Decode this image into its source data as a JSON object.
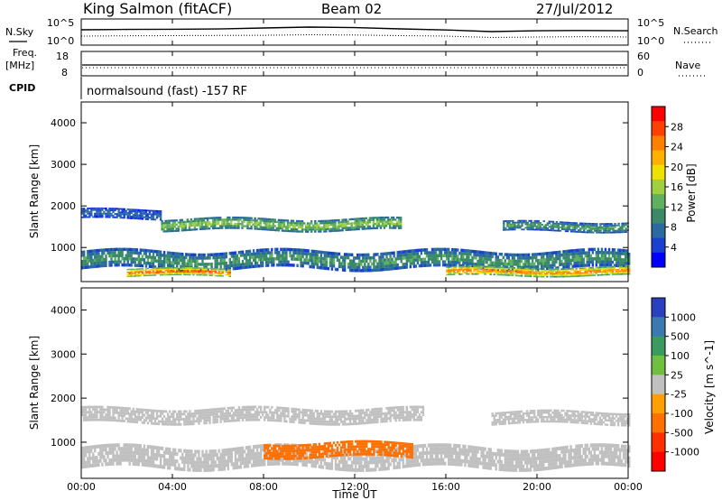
{
  "header": {
    "station": "King Salmon (fitACF)",
    "beam": "Beam 02",
    "date": "27/Jul/2012"
  },
  "panels": {
    "noise_left_label": "N.Sky",
    "noise_left_ticks": [
      "10^5",
      "10^0"
    ],
    "noise_right_label": "N.Search",
    "noise_right_ticks": [
      "10^5",
      "10^0"
    ],
    "freq_label_line1": "Freq.",
    "freq_label_line2": "[MHz]",
    "freq_ticks": [
      "18",
      "8"
    ],
    "nave_label": "Nave",
    "nave_ticks": [
      "60",
      "0"
    ],
    "cpid_label": "CPID",
    "cpid_text": "normalsound (fast) -157 RF"
  },
  "axes": {
    "ylabel": "Slant Range [km]",
    "yticks": [
      "4000",
      "3000",
      "2000",
      "1000"
    ],
    "xlabel": "Time UT",
    "xticks": [
      "00:00",
      "04:00",
      "08:00",
      "12:00",
      "16:00",
      "20:00",
      "00:00"
    ]
  },
  "colorbars": {
    "power": {
      "label": "Power [dB]",
      "ticks": [
        "28",
        "24",
        "20",
        "16",
        "12",
        "8",
        "4"
      ],
      "colors": [
        "#ff0000",
        "#ff4000",
        "#ff8000",
        "#ffb000",
        "#f0e000",
        "#a0d040",
        "#60b060",
        "#3a8a6a",
        "#2a6aa0",
        "#1a40d0",
        "#0000ff"
      ]
    },
    "velocity": {
      "label": "Velocity [m s^-1]",
      "ticks": [
        "1000",
        "500",
        "100",
        "25",
        "-25",
        "-100",
        "-500",
        "-1000"
      ],
      "colors": [
        "#2a40c0",
        "#3a7ab0",
        "#3a9a60",
        "#70c040",
        "#c0c0c0",
        "#ffa000",
        "#ff7000",
        "#ff3000",
        "#ff0000"
      ]
    }
  },
  "chart_data": [
    {
      "type": "line",
      "title": "N.Sky / N.Search",
      "x": [
        "00:00",
        "02:00",
        "04:00",
        "06:00",
        "08:00",
        "10:00",
        "12:00",
        "14:00",
        "16:00",
        "18:00",
        "20:00",
        "22:00",
        "24:00"
      ],
      "series": [
        {
          "name": "N.Sky",
          "values": [
            1000,
            1200,
            1300,
            1500,
            2500,
            4000,
            3000,
            1600,
            900,
            400,
            600,
            700,
            600
          ]
        },
        {
          "name": "N.Search",
          "values": [
            40,
            45,
            50,
            55,
            60,
            80,
            70,
            50,
            40,
            20,
            25,
            30,
            25
          ]
        }
      ]
    },
    {
      "type": "line",
      "title": "Freq. / Nave",
      "x": [
        "00:00",
        "04:00",
        "08:00",
        "12:00",
        "16:00",
        "20:00",
        "24:00"
      ],
      "series": [
        {
          "name": "Freq. [MHz]",
          "values": [
            10.5,
            10.5,
            10.5,
            10.5,
            10.5,
            10.5,
            10.5
          ]
        },
        {
          "name": "Nave",
          "values": [
            8,
            8,
            8,
            8,
            8,
            8,
            8
          ]
        }
      ]
    },
    {
      "type": "heatmap",
      "title": "Power [dB]",
      "xlim": [
        0,
        24
      ],
      "ylim": [
        180,
        4500
      ],
      "bands": [
        {
          "t_start": 0.0,
          "t_end": 24.0,
          "range_center": 700,
          "range_width": 450,
          "power_db": 10
        },
        {
          "t_start": 0.0,
          "t_end": 3.5,
          "range_center": 1800,
          "range_width": 250,
          "power_db": 6
        },
        {
          "t_start": 3.5,
          "t_end": 14.0,
          "range_center": 1550,
          "range_width": 300,
          "power_db": 14
        },
        {
          "t_start": 18.5,
          "t_end": 24.0,
          "range_center": 1500,
          "range_width": 250,
          "power_db": 10
        },
        {
          "t_start": 2.0,
          "t_end": 6.5,
          "range_center": 400,
          "range_width": 200,
          "power_db": 26
        },
        {
          "t_start": 16.0,
          "t_end": 24.0,
          "range_center": 420,
          "range_width": 220,
          "power_db": 24
        }
      ]
    },
    {
      "type": "heatmap",
      "title": "Velocity [m s^-1]",
      "xlim": [
        0,
        24
      ],
      "ylim": [
        180,
        4500
      ],
      "bands": [
        {
          "t_start": 0.0,
          "t_end": 24.0,
          "range_center": 650,
          "range_width": 500,
          "velocity": 0
        },
        {
          "t_start": 0.0,
          "t_end": 15.0,
          "range_center": 1600,
          "range_width": 350,
          "velocity": 0
        },
        {
          "t_start": 18.0,
          "t_end": 24.0,
          "range_center": 1550,
          "range_width": 300,
          "velocity": 0
        },
        {
          "t_start": 8.0,
          "t_end": 14.5,
          "range_center": 820,
          "range_width": 350,
          "velocity": -150
        }
      ]
    }
  ]
}
